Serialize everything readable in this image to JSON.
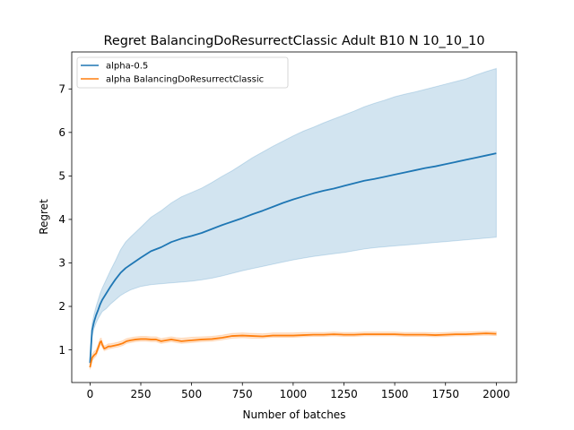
{
  "chart_data": {
    "type": "line",
    "title": "Regret BalancingDoResurrectClassic Adult B10 N 10_10_10",
    "xlabel": "Number of batches",
    "ylabel": "Regret",
    "xlim": [
      -90,
      2100
    ],
    "ylim": [
      0.25,
      7.85
    ],
    "xticks": [
      0,
      250,
      500,
      750,
      1000,
      1250,
      1500,
      1750,
      2000
    ],
    "xtick_labels": [
      "0",
      "250",
      "500",
      "750",
      "1000",
      "1250",
      "1500",
      "1750",
      "2000"
    ],
    "yticks": [
      1,
      2,
      3,
      4,
      5,
      6,
      7
    ],
    "ytick_labels": [
      "1",
      "2",
      "3",
      "4",
      "5",
      "6",
      "7"
    ],
    "grid": false,
    "legend_position": "top-left",
    "series": [
      {
        "name": "alpha-0.5",
        "color": "#1f77b4",
        "band_color": "#1f77b4",
        "x": [
          0,
          10,
          20,
          30,
          40,
          50,
          60,
          80,
          100,
          125,
          150,
          175,
          200,
          250,
          300,
          350,
          400,
          450,
          500,
          550,
          600,
          650,
          700,
          750,
          800,
          850,
          900,
          950,
          1000,
          1050,
          1100,
          1150,
          1200,
          1250,
          1300,
          1350,
          1400,
          1450,
          1500,
          1550,
          1600,
          1650,
          1700,
          1750,
          1800,
          1850,
          1900,
          1950,
          2000
        ],
        "y": [
          0.7,
          1.45,
          1.65,
          1.8,
          1.92,
          2.05,
          2.15,
          2.3,
          2.45,
          2.62,
          2.77,
          2.88,
          2.96,
          3.12,
          3.27,
          3.36,
          3.48,
          3.56,
          3.62,
          3.69,
          3.78,
          3.87,
          3.95,
          4.03,
          4.12,
          4.2,
          4.29,
          4.38,
          4.46,
          4.53,
          4.6,
          4.66,
          4.71,
          4.77,
          4.83,
          4.89,
          4.93,
          4.98,
          5.03,
          5.08,
          5.13,
          5.18,
          5.22,
          5.27,
          5.32,
          5.37,
          5.42,
          5.47,
          5.52
        ],
        "lower": [
          0.6,
          1.3,
          1.5,
          1.62,
          1.72,
          1.8,
          1.88,
          1.95,
          2.05,
          2.15,
          2.25,
          2.32,
          2.38,
          2.46,
          2.5,
          2.52,
          2.54,
          2.56,
          2.58,
          2.61,
          2.65,
          2.7,
          2.76,
          2.82,
          2.87,
          2.92,
          2.97,
          3.02,
          3.07,
          3.11,
          3.15,
          3.18,
          3.21,
          3.24,
          3.28,
          3.32,
          3.35,
          3.37,
          3.39,
          3.41,
          3.43,
          3.45,
          3.47,
          3.49,
          3.51,
          3.53,
          3.55,
          3.57,
          3.59
        ],
        "upper": [
          0.8,
          1.6,
          1.82,
          2.0,
          2.15,
          2.3,
          2.42,
          2.62,
          2.82,
          3.05,
          3.3,
          3.48,
          3.6,
          3.82,
          4.05,
          4.2,
          4.38,
          4.52,
          4.62,
          4.72,
          4.85,
          4.99,
          5.12,
          5.27,
          5.42,
          5.55,
          5.68,
          5.8,
          5.92,
          6.03,
          6.12,
          6.22,
          6.31,
          6.4,
          6.49,
          6.59,
          6.67,
          6.74,
          6.82,
          6.88,
          6.93,
          6.99,
          7.05,
          7.11,
          7.17,
          7.23,
          7.32,
          7.4,
          7.47
        ]
      },
      {
        "name": "alpha BalancingDoResurrectClassic",
        "color": "#ff7f0e",
        "band_color": "#ff7f0e",
        "x": [
          0,
          10,
          20,
          30,
          40,
          50,
          55,
          60,
          70,
          80,
          90,
          100,
          120,
          140,
          160,
          180,
          200,
          225,
          250,
          275,
          300,
          325,
          350,
          375,
          400,
          425,
          450,
          500,
          550,
          600,
          650,
          700,
          750,
          800,
          850,
          900,
          950,
          1000,
          1050,
          1100,
          1150,
          1200,
          1250,
          1300,
          1350,
          1400,
          1450,
          1500,
          1550,
          1600,
          1650,
          1700,
          1750,
          1800,
          1850,
          1900,
          1950,
          2000
        ],
        "y": [
          0.6,
          0.82,
          0.88,
          0.92,
          1.05,
          1.18,
          1.2,
          1.12,
          1.03,
          1.05,
          1.08,
          1.08,
          1.1,
          1.12,
          1.15,
          1.2,
          1.22,
          1.24,
          1.25,
          1.25,
          1.24,
          1.24,
          1.2,
          1.22,
          1.24,
          1.22,
          1.2,
          1.22,
          1.24,
          1.25,
          1.28,
          1.32,
          1.33,
          1.32,
          1.31,
          1.33,
          1.33,
          1.33,
          1.34,
          1.35,
          1.35,
          1.36,
          1.35,
          1.35,
          1.36,
          1.36,
          1.36,
          1.36,
          1.35,
          1.35,
          1.35,
          1.34,
          1.35,
          1.36,
          1.36,
          1.37,
          1.38,
          1.37
        ],
        "lower": [
          0.55,
          0.75,
          0.81,
          0.86,
          0.98,
          1.1,
          1.13,
          1.06,
          0.98,
          1.0,
          1.02,
          1.03,
          1.05,
          1.07,
          1.1,
          1.15,
          1.17,
          1.19,
          1.2,
          1.2,
          1.19,
          1.19,
          1.15,
          1.17,
          1.19,
          1.17,
          1.15,
          1.17,
          1.19,
          1.2,
          1.23,
          1.27,
          1.28,
          1.27,
          1.27,
          1.29,
          1.29,
          1.29,
          1.3,
          1.31,
          1.31,
          1.32,
          1.31,
          1.31,
          1.32,
          1.32,
          1.32,
          1.32,
          1.31,
          1.31,
          1.31,
          1.3,
          1.31,
          1.32,
          1.32,
          1.33,
          1.34,
          1.33
        ],
        "upper": [
          0.66,
          0.9,
          0.96,
          1.0,
          1.12,
          1.26,
          1.27,
          1.18,
          1.09,
          1.11,
          1.14,
          1.14,
          1.16,
          1.18,
          1.21,
          1.26,
          1.28,
          1.3,
          1.31,
          1.31,
          1.3,
          1.3,
          1.26,
          1.28,
          1.3,
          1.28,
          1.27,
          1.29,
          1.3,
          1.31,
          1.34,
          1.38,
          1.39,
          1.38,
          1.37,
          1.39,
          1.39,
          1.39,
          1.4,
          1.4,
          1.4,
          1.41,
          1.4,
          1.4,
          1.41,
          1.41,
          1.41,
          1.41,
          1.4,
          1.4,
          1.4,
          1.39,
          1.4,
          1.41,
          1.41,
          1.42,
          1.43,
          1.42
        ]
      }
    ]
  }
}
